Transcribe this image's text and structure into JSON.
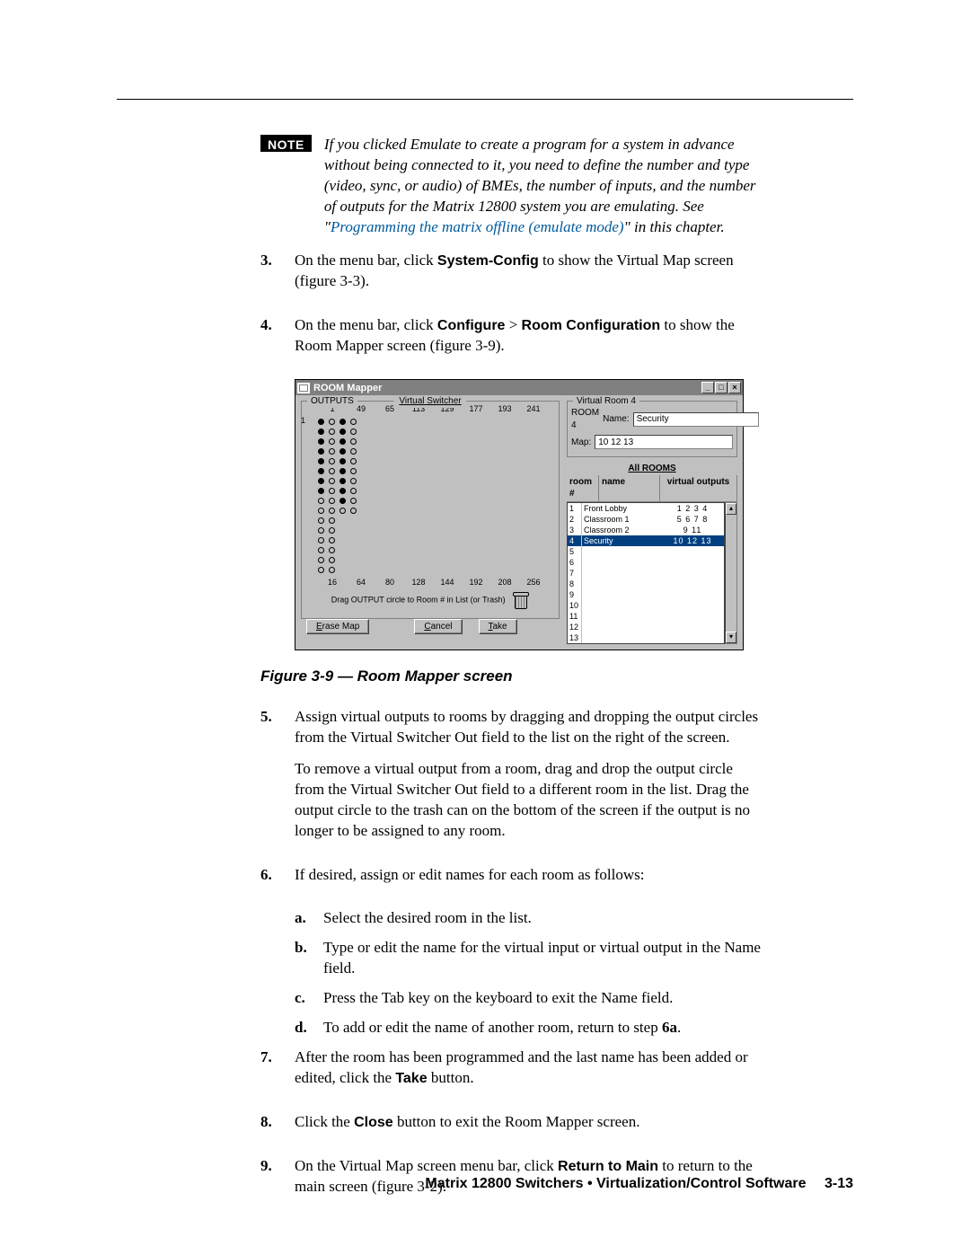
{
  "note": {
    "badge": "NOTE",
    "text_before_link": "If you clicked Emulate to create a program for a system in advance without being connected to it, you need to define the number and type (video, sync, or audio) of BMEs, the number of inputs, and the number of outputs for the Matrix 12800 system you are emulating.  See \"",
    "link_text": "Programming the matrix offline (emulate mode)",
    "text_after_link": "\" in this chapter."
  },
  "steps": {
    "s3": {
      "num": "3.",
      "before_bold": "On the menu bar, click ",
      "bold": "System-Config",
      "after_bold": " to show the Virtual Map screen (figure 3-3)."
    },
    "s4": {
      "num": "4.",
      "before": "On the menu bar, click ",
      "b1": "Configure",
      "gt": " > ",
      "b2": "Room Configuration",
      "after": " to show the Room Mapper screen (figure 3-9)."
    },
    "s5": {
      "num": "5.",
      "p1": "Assign virtual outputs to rooms by dragging and dropping the output circles from the Virtual Switcher Out field to the list on the right of the screen.",
      "p2": "To remove a virtual output from a room, drag and drop the output circle from the Virtual Switcher Out field to a different room in the list.  Drag the output circle to the trash can on the bottom of the screen if the output is no longer to be assigned to any room."
    },
    "s6": {
      "num": "6.",
      "intro": "If desired, assign or edit names for each room as follows:",
      "a": {
        "l": "a.",
        "t": "Select the desired room in the list."
      },
      "b": {
        "l": "b.",
        "t": "Type or edit the name for the virtual input or virtual output in the Name field."
      },
      "c": {
        "l": "c.",
        "t": "Press the Tab key on the keyboard to exit the Name field."
      },
      "d": {
        "l": "d.",
        "before": "To add or edit the name of another room, return to step ",
        "bold": "6a",
        "after": "."
      }
    },
    "s7": {
      "num": "7.",
      "before": "After the room has been programmed and the last name has been added or edited, click the ",
      "bold": "Take",
      "after": " button."
    },
    "s8": {
      "num": "8.",
      "before": "Click the ",
      "bold": "Close",
      "after": " button to exit the Room Mapper screen."
    },
    "s9": {
      "num": "9.",
      "before": "On the Virtual Map screen menu bar, click ",
      "bold": "Return to Main",
      "after": " to return to the main screen (figure 3-2)."
    }
  },
  "figure_caption": "Figure 3-9 — Room Mapper screen",
  "rm": {
    "title": "ROOM Mapper",
    "winbtns": {
      "min": "_",
      "max": "□",
      "close": "×"
    },
    "vs_label": "Virtual Switcher",
    "outputs_label": "OUTPUTS",
    "top_nums": [
      "1",
      "49",
      "65",
      "113",
      "129",
      "177",
      "193",
      "241"
    ],
    "bot_nums": [
      "16",
      "64",
      "80",
      "128",
      "144",
      "192",
      "208",
      "256"
    ],
    "rows": [
      {
        "c": [
          1,
          0,
          1,
          0
        ]
      },
      {
        "c": [
          1,
          0,
          1,
          0
        ]
      },
      {
        "c": [
          1,
          0,
          1,
          0
        ]
      },
      {
        "c": [
          1,
          0,
          1,
          0
        ]
      },
      {
        "c": [
          1,
          0,
          1,
          0
        ]
      },
      {
        "c": [
          1,
          0,
          1,
          0
        ]
      },
      {
        "c": [
          1,
          0,
          1,
          0
        ]
      },
      {
        "c": [
          1,
          0,
          1,
          0
        ]
      },
      {
        "c": [
          0,
          0,
          1,
          0
        ]
      },
      {
        "c": [
          0,
          0,
          0,
          0
        ]
      },
      {
        "c": [
          0,
          0
        ]
      },
      {
        "c": [
          0,
          0
        ]
      },
      {
        "c": [
          0,
          0
        ]
      },
      {
        "c": [
          0,
          0
        ]
      },
      {
        "c": [
          0,
          0
        ]
      },
      {
        "c": [
          0,
          0
        ]
      }
    ],
    "drag_hint": "Drag OUTPUT circle to Room # in List (or Trash)",
    "btn_erase": "Erase Map",
    "btn_erase_u": "E",
    "btn_cancel": "Cancel",
    "btn_cancel_u": "C",
    "btn_take": "Take",
    "btn_take_u": "T",
    "vr_legend": "Virtual Room 4",
    "room_label": "ROOM 4",
    "name_label": "Name:",
    "name_value": "Security",
    "map_label": "Map:",
    "map_value": "10 12 13",
    "all_rooms": "All ROOMS",
    "th_num": "room #",
    "th_name": "name",
    "th_out": "virtual outputs",
    "rooms": [
      {
        "n": "1",
        "name": "Front Lobby",
        "out": "1 2 3 4",
        "sel": 0
      },
      {
        "n": "2",
        "name": "Classroom 1",
        "out": "5 6 7 8",
        "sel": 0
      },
      {
        "n": "3",
        "name": "Classroom 2",
        "out": "9 11",
        "sel": 0
      },
      {
        "n": "4",
        "name": "Security",
        "out": "10 12 13",
        "sel": 1
      },
      {
        "n": "5",
        "name": "",
        "out": "",
        "sel": 0
      },
      {
        "n": "6",
        "name": "",
        "out": "",
        "sel": 0
      },
      {
        "n": "7",
        "name": "",
        "out": "",
        "sel": 0
      },
      {
        "n": "8",
        "name": "",
        "out": "",
        "sel": 0
      },
      {
        "n": "9",
        "name": "",
        "out": "",
        "sel": 0
      },
      {
        "n": "10",
        "name": "",
        "out": "",
        "sel": 0
      },
      {
        "n": "11",
        "name": "",
        "out": "",
        "sel": 0
      },
      {
        "n": "12",
        "name": "",
        "out": "",
        "sel": 0
      },
      {
        "n": "13",
        "name": "",
        "out": "",
        "sel": 0
      }
    ]
  },
  "footer": {
    "text": "Matrix 12800 Switchers • Virtualization/Control Software",
    "page": "3-13"
  }
}
